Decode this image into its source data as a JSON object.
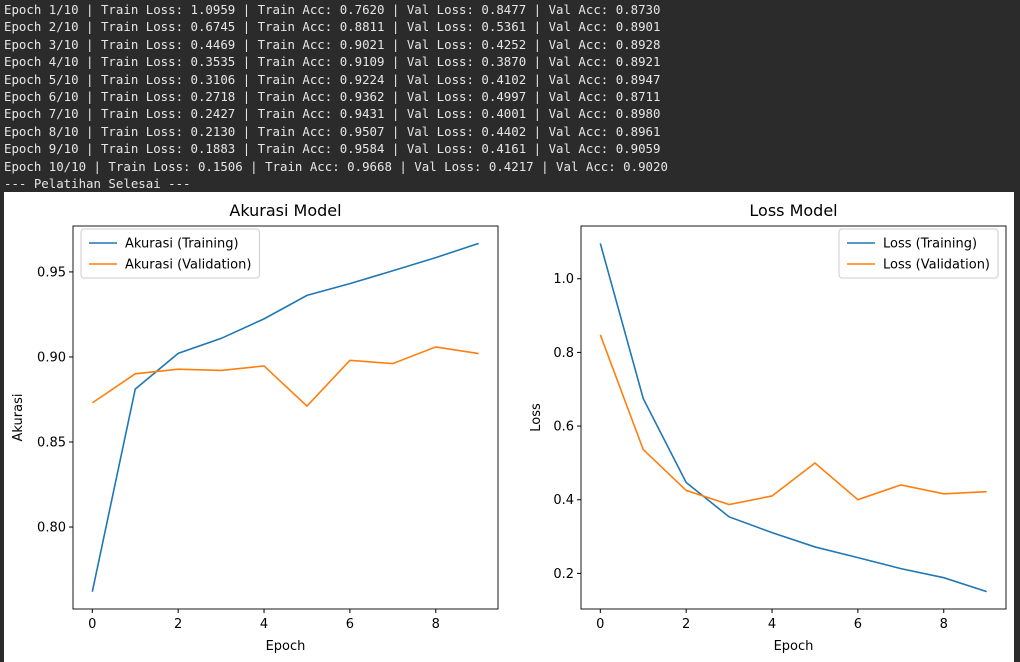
{
  "console": {
    "lines": [
      "Epoch 1/10 | Train Loss: 1.0959 | Train Acc: 0.7620 | Val Loss: 0.8477 | Val Acc: 0.8730",
      "Epoch 2/10 | Train Loss: 0.6745 | Train Acc: 0.8811 | Val Loss: 0.5361 | Val Acc: 0.8901",
      "Epoch 3/10 | Train Loss: 0.4469 | Train Acc: 0.9021 | Val Loss: 0.4252 | Val Acc: 0.8928",
      "Epoch 4/10 | Train Loss: 0.3535 | Train Acc: 0.9109 | Val Loss: 0.3870 | Val Acc: 0.8921",
      "Epoch 5/10 | Train Loss: 0.3106 | Train Acc: 0.9224 | Val Loss: 0.4102 | Val Acc: 0.8947",
      "Epoch 6/10 | Train Loss: 0.2718 | Train Acc: 0.9362 | Val Loss: 0.4997 | Val Acc: 0.8711",
      "Epoch 7/10 | Train Loss: 0.2427 | Train Acc: 0.9431 | Val Loss: 0.4001 | Val Acc: 0.8980",
      "Epoch 8/10 | Train Loss: 0.2130 | Train Acc: 0.9507 | Val Loss: 0.4402 | Val Acc: 0.8961",
      "Epoch 9/10 | Train Loss: 0.1883 | Train Acc: 0.9584 | Val Loss: 0.4161 | Val Acc: 0.9059",
      "Epoch 10/10 | Train Loss: 0.1506 | Train Acc: 0.9668 | Val Loss: 0.4217 | Val Acc: 0.9020",
      "--- Pelatihan Selesai ---"
    ]
  },
  "chart_data": [
    {
      "type": "line",
      "title": "Akurasi Model",
      "x_label": "Epoch",
      "y_label": "Akurasi",
      "x": [
        0,
        1,
        2,
        3,
        4,
        5,
        6,
        7,
        8,
        9
      ],
      "series": [
        {
          "name": "Akurasi (Training)",
          "color": "#1f77b4",
          "values": [
            0.762,
            0.8811,
            0.9021,
            0.9109,
            0.9224,
            0.9362,
            0.9431,
            0.9507,
            0.9584,
            0.9668
          ]
        },
        {
          "name": "Akurasi (Validation)",
          "color": "#ff7f0e",
          "values": [
            0.873,
            0.8901,
            0.8928,
            0.8921,
            0.8947,
            0.8711,
            0.898,
            0.8961,
            0.9059,
            0.902
          ]
        }
      ],
      "xlim": [
        -0.45,
        9.45
      ],
      "xticks": [
        0,
        2,
        4,
        6,
        8
      ],
      "ylim": [
        0.7518,
        0.977
      ],
      "yticks": [
        {
          "value": 0.8,
          "label": "0.80"
        },
        {
          "value": 0.85,
          "label": "0.85"
        },
        {
          "value": 0.9,
          "label": "0.90"
        },
        {
          "value": 0.95,
          "label": "0.95"
        }
      ],
      "legend": "upper left",
      "grid": false
    },
    {
      "type": "line",
      "title": "Loss Model",
      "x_label": "Epoch",
      "y_label": "Loss",
      "x": [
        0,
        1,
        2,
        3,
        4,
        5,
        6,
        7,
        8,
        9
      ],
      "series": [
        {
          "name": "Loss (Training)",
          "color": "#1f77b4",
          "values": [
            1.0959,
            0.6745,
            0.4469,
            0.3535,
            0.3106,
            0.2718,
            0.2427,
            0.213,
            0.1883,
            0.1506
          ]
        },
        {
          "name": "Loss (Validation)",
          "color": "#ff7f0e",
          "values": [
            0.8477,
            0.5361,
            0.4252,
            0.387,
            0.4102,
            0.4997,
            0.4001,
            0.4402,
            0.4161,
            0.4217
          ]
        }
      ],
      "xlim": [
        -0.45,
        9.45
      ],
      "xticks": [
        0,
        2,
        4,
        6,
        8
      ],
      "ylim": [
        0.1033,
        1.1432
      ],
      "yticks": [
        0.2,
        0.4,
        0.6,
        0.8,
        {
          "value": 1.0,
          "label": "1.0"
        }
      ],
      "legend": "upper right",
      "grid": false
    }
  ]
}
